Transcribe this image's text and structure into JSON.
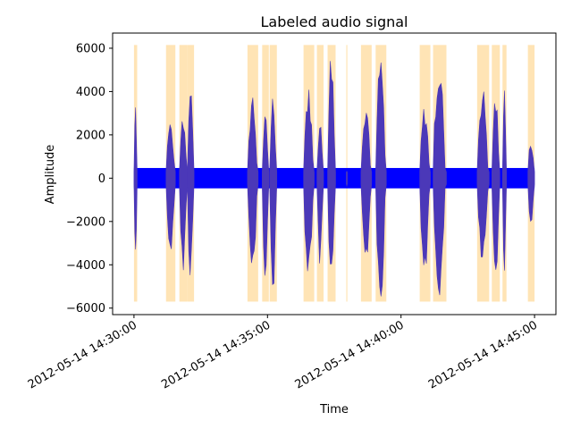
{
  "chart_data": {
    "type": "area",
    "title": "Labeled audio signal",
    "xlabel": "Time",
    "ylabel": "Amplitude",
    "x_start": "2012-05-14 14:30:00",
    "xlim_min": [
      -0.8,
      15.8
    ],
    "ylim": [
      -6300,
      6700
    ],
    "grid": false,
    "x_ticks": [
      {
        "min": 0,
        "label": "2012-05-14 14:30:00"
      },
      {
        "min": 5,
        "label": "2012-05-14 14:35:00"
      },
      {
        "min": 10,
        "label": "2012-05-14 14:40:00"
      },
      {
        "min": 15,
        "label": "2012-05-14 14:45:00"
      }
    ],
    "y_ticks": [
      6000,
      4000,
      2000,
      0,
      -2000,
      -4000,
      -6000
    ],
    "y_tick_labels": [
      "6000",
      "4000",
      "2000",
      "0",
      "−2000",
      "−4000",
      "−6000"
    ],
    "signal_colors": {
      "background": "#0000ff",
      "labeled": "#4b38b8"
    },
    "label_band_color": "#ffe4b5",
    "band_y_range": [
      -5700,
      6150
    ],
    "noise_amplitude": 470,
    "labeled_segments": [
      {
        "start_min": 0.0,
        "end_min": 0.12,
        "peak": 3950,
        "trough": -3900
      },
      {
        "start_min": 1.2,
        "end_min": 1.55,
        "peak": 2750,
        "trough": -4100
      },
      {
        "start_min": 1.7,
        "end_min": 2.0,
        "peak": 3100,
        "trough": -4300
      },
      {
        "start_min": 2.0,
        "end_min": 2.25,
        "peak": 4950,
        "trough": -4700
      },
      {
        "start_min": 4.25,
        "end_min": 4.65,
        "peak": 3800,
        "trough": -4500
      },
      {
        "start_min": 4.8,
        "end_min": 5.05,
        "peak": 3000,
        "trough": -4600
      },
      {
        "start_min": 5.08,
        "end_min": 5.35,
        "peak": 4100,
        "trough": -5400
      },
      {
        "start_min": 6.35,
        "end_min": 6.75,
        "peak": 4250,
        "trough": -4700
      },
      {
        "start_min": 6.85,
        "end_min": 7.1,
        "peak": 2700,
        "trough": -4200
      },
      {
        "start_min": 7.25,
        "end_min": 7.55,
        "peak": 6150,
        "trough": -5700
      },
      {
        "start_min": 7.95,
        "end_min": 7.99,
        "peak": 400,
        "trough": -400
      },
      {
        "start_min": 8.5,
        "end_min": 8.9,
        "peak": 3650,
        "trough": -4000
      },
      {
        "start_min": 9.05,
        "end_min": 9.45,
        "peak": 5750,
        "trough": -5650
      },
      {
        "start_min": 10.7,
        "end_min": 11.1,
        "peak": 3400,
        "trough": -4500
      },
      {
        "start_min": 11.2,
        "end_min": 11.7,
        "peak": 5450,
        "trough": -5600
      },
      {
        "start_min": 12.85,
        "end_min": 13.3,
        "peak": 4300,
        "trough": -4200
      },
      {
        "start_min": 13.4,
        "end_min": 13.7,
        "peak": 4000,
        "trough": -4800
      },
      {
        "start_min": 13.8,
        "end_min": 13.95,
        "peak": 4650,
        "trough": -4350
      },
      {
        "start_min": 14.75,
        "end_min": 15.0,
        "peak": 1900,
        "trough": -2300
      }
    ]
  }
}
